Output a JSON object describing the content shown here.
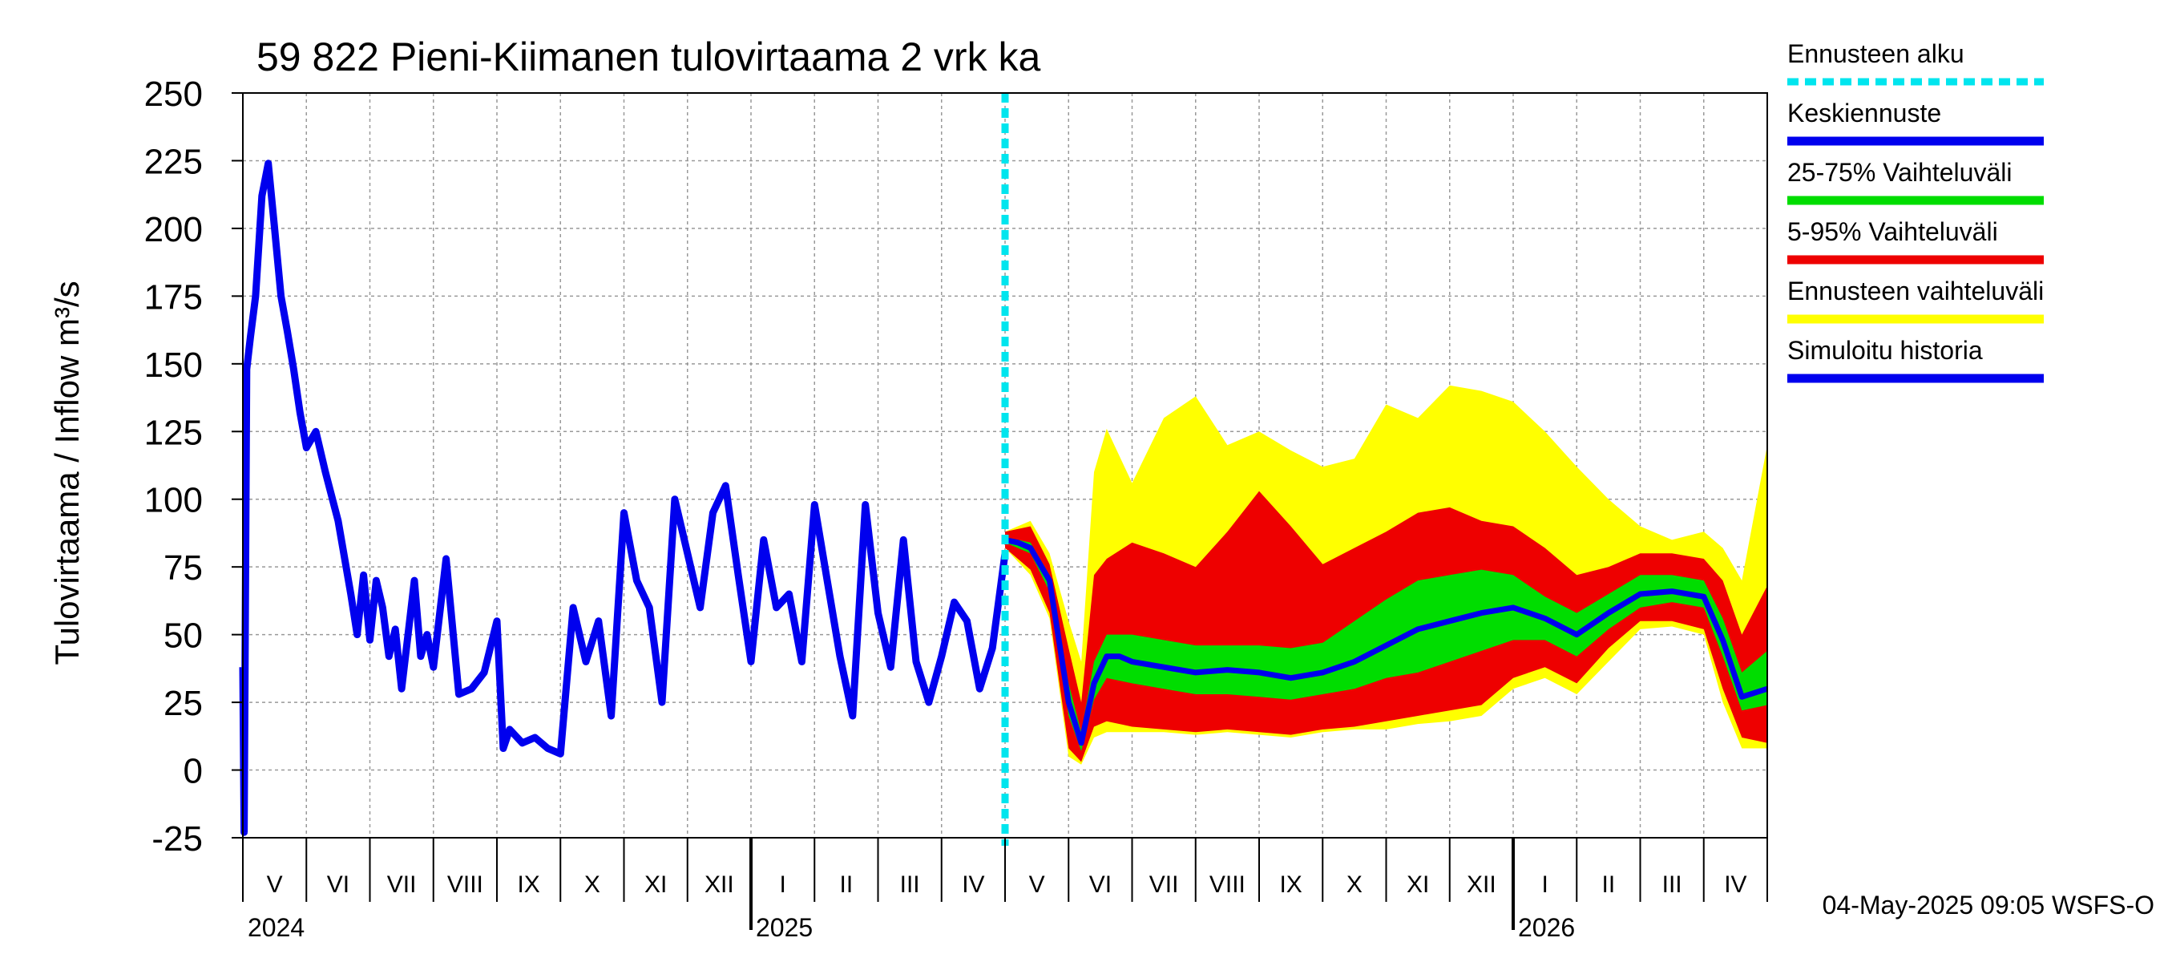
{
  "chart_data": {
    "type": "area",
    "title": "59 822 Pieni-Kiimanen tulovirtaama 2 vrk ka",
    "ylabel": "Tulovirtaama / Inflow    m³/s",
    "ylim": [
      -25,
      250
    ],
    "yticks": [
      "-25",
      "0",
      "25",
      "50",
      "75",
      "100",
      "125",
      "150",
      "175",
      "200",
      "225",
      "250"
    ],
    "months": [
      "V",
      "VI",
      "VII",
      "VIII",
      "IX",
      "X",
      "XI",
      "XII",
      "I",
      "II",
      "III",
      "IV",
      "V",
      "VI",
      "VII",
      "VIII",
      "IX",
      "X",
      "XI",
      "XII",
      "I",
      "II",
      "III",
      "IV"
    ],
    "years": [
      "2024",
      "2025",
      "2026"
    ],
    "forecast_start_month": 12,
    "timestamp": "04-May-2025 09:05 WSFS-O",
    "legend": [
      {
        "label": "Ennusteen alku",
        "color": "#00e5ee",
        "style": "dashed"
      },
      {
        "label": "Keskiennuste",
        "color": "#0000ee",
        "style": "solid"
      },
      {
        "label": "25-75% Vaihteluväli",
        "color": "#00dd00",
        "style": "solid"
      },
      {
        "label": "5-95% Vaihteluväli",
        "color": "#ee0000",
        "style": "solid"
      },
      {
        "label": "Ennusteen vaihteluväli",
        "color": "#ffff00",
        "style": "solid"
      },
      {
        "label": "Simuloitu historia",
        "color": "#0000ee",
        "style": "solid"
      }
    ],
    "series": [
      {
        "name": "Simuloitu historia",
        "color": "#0000ee",
        "x": [
          0,
          0.02,
          0.06,
          0.12,
          0.2,
          0.3,
          0.4,
          0.5,
          0.6,
          0.7,
          0.8,
          0.9,
          1.0,
          1.15,
          1.3,
          1.5,
          1.7,
          1.8,
          1.9,
          2.0,
          2.1,
          2.2,
          2.3,
          2.4,
          2.5,
          2.6,
          2.7,
          2.8,
          2.9,
          3.0,
          3.2,
          3.4,
          3.6,
          3.8,
          4.0,
          4.1,
          4.2,
          4.4,
          4.6,
          4.8,
          5.0,
          5.2,
          5.4,
          5.6,
          5.8,
          6.0,
          6.2,
          6.4,
          6.6,
          6.8,
          7.0,
          7.2,
          7.4,
          7.6,
          7.8,
          8.0,
          8.2,
          8.4,
          8.6,
          8.8,
          9.0,
          9.2,
          9.4,
          9.6,
          9.8,
          10.0,
          10.2,
          10.4,
          10.6,
          10.8,
          11.0,
          11.2,
          11.4,
          11.6,
          11.8,
          12.0
        ],
        "values": [
          38,
          -23,
          148,
          160,
          175,
          212,
          224,
          200,
          175,
          162,
          148,
          132,
          119,
          125,
          110,
          92,
          65,
          50,
          72,
          48,
          70,
          60,
          42,
          52,
          30,
          50,
          70,
          42,
          50,
          38,
          78,
          28,
          30,
          36,
          55,
          8,
          15,
          10,
          12,
          8,
          6,
          60,
          40,
          55,
          20,
          95,
          70,
          60,
          25,
          100,
          80,
          60,
          95,
          105,
          72,
          40,
          85,
          60,
          65,
          40,
          98,
          70,
          42,
          20,
          98,
          58,
          38,
          85,
          40,
          25,
          42,
          62,
          55,
          30,
          45,
          80
        ]
      },
      {
        "name": "Keskiennuste",
        "color": "#0000ee",
        "x": [
          12.0,
          12.2,
          12.4,
          12.7,
          13.0,
          13.2,
          13.4,
          13.6,
          13.8,
          14.0,
          14.5,
          15.0,
          15.5,
          16.0,
          16.5,
          17.0,
          17.5,
          18.0,
          18.5,
          19.0,
          19.5,
          20.0,
          20.5,
          21.0,
          21.5,
          22.0,
          22.5,
          23.0,
          23.3,
          23.6,
          24.0
        ],
        "values": [
          85,
          84,
          82,
          70,
          25,
          10,
          32,
          42,
          42,
          40,
          38,
          36,
          37,
          36,
          34,
          36,
          40,
          46,
          52,
          55,
          58,
          60,
          56,
          50,
          58,
          65,
          66,
          64,
          48,
          27,
          30
        ]
      },
      {
        "name": "25-75% Vaihteluväli",
        "color": "#00dd00",
        "x": [
          12.0,
          12.4,
          12.7,
          13.0,
          13.2,
          13.4,
          13.6,
          14.0,
          14.5,
          15.0,
          15.5,
          16.0,
          16.5,
          17.0,
          17.5,
          18.0,
          18.5,
          19.0,
          19.5,
          20.0,
          20.5,
          21.0,
          21.5,
          22.0,
          22.5,
          23.0,
          23.3,
          23.6,
          24.0
        ],
        "upper": [
          86,
          84,
          72,
          32,
          14,
          40,
          50,
          50,
          48,
          46,
          46,
          46,
          45,
          47,
          55,
          63,
          70,
          72,
          74,
          72,
          64,
          58,
          65,
          72,
          72,
          70,
          56,
          36,
          44
        ],
        "lower": [
          84,
          80,
          66,
          20,
          7,
          26,
          34,
          32,
          30,
          28,
          28,
          27,
          26,
          28,
          30,
          34,
          36,
          40,
          44,
          48,
          48,
          42,
          52,
          60,
          62,
          60,
          42,
          22,
          24
        ]
      },
      {
        "name": "5-95% Vaihteluväli",
        "color": "#ee0000",
        "x": [
          12.0,
          12.4,
          12.7,
          13.0,
          13.2,
          13.4,
          13.6,
          14.0,
          14.5,
          15.0,
          15.5,
          16.0,
          16.5,
          17.0,
          17.5,
          18.0,
          18.5,
          19.0,
          19.5,
          20.0,
          20.5,
          21.0,
          21.5,
          22.0,
          22.5,
          23.0,
          23.3,
          23.6,
          24.0
        ],
        "upper": [
          88,
          90,
          76,
          45,
          25,
          72,
          78,
          84,
          80,
          75,
          88,
          103,
          90,
          76,
          82,
          88,
          95,
          97,
          92,
          90,
          82,
          72,
          75,
          80,
          80,
          78,
          70,
          50,
          68
        ],
        "lower": [
          82,
          74,
          58,
          8,
          3,
          16,
          18,
          16,
          15,
          14,
          15,
          14,
          13,
          15,
          16,
          18,
          20,
          22,
          24,
          34,
          38,
          32,
          45,
          55,
          55,
          52,
          30,
          12,
          10
        ]
      },
      {
        "name": "Ennusteen vaihteluväli",
        "color": "#ffff00",
        "x": [
          12.0,
          12.4,
          12.7,
          13.0,
          13.2,
          13.4,
          13.6,
          14.0,
          14.5,
          15.0,
          15.5,
          16.0,
          16.5,
          17.0,
          17.5,
          18.0,
          18.5,
          19.0,
          19.5,
          20.0,
          20.5,
          21.0,
          21.5,
          22.0,
          22.5,
          23.0,
          23.3,
          23.6,
          24.0
        ],
        "upper": [
          88,
          92,
          80,
          55,
          40,
          110,
          126,
          106,
          130,
          138,
          120,
          125,
          118,
          112,
          115,
          135,
          130,
          142,
          140,
          136,
          125,
          112,
          100,
          90,
          85,
          88,
          82,
          70,
          120
        ],
        "lower": [
          82,
          72,
          56,
          5,
          2,
          12,
          14,
          14,
          14,
          13,
          14,
          13,
          12,
          14,
          15,
          15,
          17,
          18,
          20,
          30,
          34,
          28,
          40,
          52,
          53,
          50,
          25,
          8,
          8
        ]
      }
    ]
  }
}
